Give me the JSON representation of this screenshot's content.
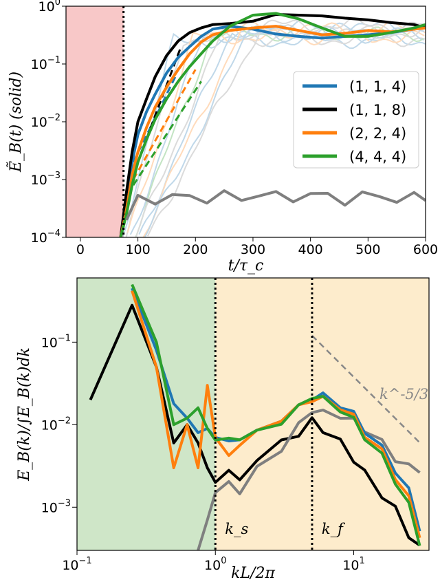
{
  "chart_data": [
    {
      "type": "line",
      "ylabel": "Ẽ_B(t) (solid)",
      "xlabel": "t/τ_c",
      "xlim": [
        -25,
        600
      ],
      "ylim": [
        0.0001,
        1
      ],
      "yscale": "log",
      "xticks": [
        "0",
        "100",
        "200",
        "300",
        "400",
        "500",
        "600"
      ],
      "xtick_values": [
        0,
        100,
        200,
        300,
        400,
        500,
        600
      ],
      "yticks": [
        "10^-4",
        "10^-3",
        "10^-2",
        "10^-1",
        "10^0"
      ],
      "ytick_values": [
        0.0001,
        0.001,
        0.01,
        0.1,
        1
      ],
      "shaded_region": {
        "x": [
          -25,
          75
        ],
        "color": "#f8c8c8"
      },
      "vline_x": 75,
      "legend_placement": "right",
      "legend": [
        {
          "label": "(1, 1, 4)",
          "color": "#1f77b4"
        },
        {
          "label": "(1, 1, 8)",
          "color": "#000000"
        },
        {
          "label": "(2, 2, 4)",
          "color": "#ff7f0e"
        },
        {
          "label": "(4, 4, 4)",
          "color": "#2ca02c"
        }
      ],
      "series": [
        {
          "color": "#1f77b4",
          "x": [
            70,
            80,
            90,
            100,
            115,
            130,
            150,
            170,
            190,
            210,
            230,
            260,
            300,
            340,
            380,
            420,
            460,
            500,
            540,
            580,
            600
          ],
          "y": [
            0.0001,
            0.0004,
            0.002,
            0.006,
            0.015,
            0.03,
            0.07,
            0.13,
            0.2,
            0.3,
            0.4,
            0.45,
            0.4,
            0.33,
            0.3,
            0.28,
            0.3,
            0.32,
            0.35,
            0.4,
            0.45
          ]
        },
        {
          "color": "#000000",
          "x": [
            70,
            80,
            90,
            100,
            115,
            130,
            150,
            170,
            190,
            210,
            230,
            260,
            300,
            340,
            380,
            420,
            460,
            500,
            540,
            580,
            600
          ],
          "y": [
            0.0001,
            0.0006,
            0.003,
            0.01,
            0.025,
            0.06,
            0.14,
            0.25,
            0.35,
            0.42,
            0.48,
            0.5,
            0.55,
            0.72,
            0.7,
            0.68,
            0.62,
            0.58,
            0.52,
            0.48,
            0.42
          ]
        },
        {
          "color": "#ff7f0e",
          "x": [
            70,
            80,
            90,
            100,
            115,
            130,
            150,
            170,
            190,
            210,
            230,
            260,
            300,
            340,
            380,
            420,
            460,
            500,
            540,
            580,
            600
          ],
          "y": [
            0.0001,
            0.0003,
            0.0012,
            0.003,
            0.008,
            0.018,
            0.04,
            0.08,
            0.15,
            0.24,
            0.32,
            0.38,
            0.42,
            0.45,
            0.38,
            0.32,
            0.34,
            0.38,
            0.36,
            0.4,
            0.42
          ]
        },
        {
          "color": "#2ca02c",
          "x": [
            70,
            80,
            90,
            100,
            115,
            130,
            150,
            170,
            190,
            210,
            230,
            260,
            300,
            340,
            380,
            420,
            460,
            500,
            540,
            580,
            600
          ],
          "y": [
            0.0001,
            0.00025,
            0.0008,
            0.002,
            0.005,
            0.011,
            0.025,
            0.05,
            0.09,
            0.15,
            0.25,
            0.45,
            0.7,
            0.75,
            0.6,
            0.42,
            0.3,
            0.3,
            0.35,
            0.42,
            0.48
          ]
        },
        {
          "color": "#7f7f7f",
          "x": [
            80,
            100,
            130,
            160,
            190,
            220,
            250,
            280,
            310,
            340,
            370,
            400,
            430,
            460,
            490,
            520,
            550,
            580,
            600
          ],
          "y": [
            0.0002,
            0.00045,
            0.0005,
            0.00048,
            0.0005,
            0.0005,
            0.00052,
            0.00048,
            0.00058,
            0.0005,
            0.00052,
            0.00055,
            0.0005,
            0.00048,
            0.00052,
            0.0005,
            0.0005,
            0.00048,
            0.0005
          ]
        }
      ]
    },
    {
      "type": "line",
      "ylabel": "E_B(k)/∫E_B(k)dk",
      "xlabel": "kL/2π",
      "xscale": "log",
      "yscale": "log",
      "xlim": [
        0.1,
        35
      ],
      "ylim": [
        0.0003,
        0.6
      ],
      "xticks": [
        "10^-1",
        "10^0",
        "10^1"
      ],
      "xtick_values": [
        0.1,
        1,
        10
      ],
      "yticks": [
        "10^-3",
        "10^-2",
        "10^-1"
      ],
      "ytick_values": [
        0.001,
        0.01,
        0.1
      ],
      "regions": [
        {
          "x": [
            0.1,
            1
          ],
          "color": "#cfe6c8"
        },
        {
          "x": [
            1,
            35
          ],
          "color": "#fdeccc"
        }
      ],
      "annotations": [
        {
          "label": "k_s",
          "x": 1
        },
        {
          "label": "k_f",
          "x": 5
        }
      ],
      "reference_line": {
        "label": "k^-5/3",
        "x": [
          5,
          30
        ],
        "y0": 0.12,
        "exponent": -1.6667,
        "color": "#888888"
      },
      "series": [
        {
          "color": "#000000",
          "x": [
            0.125,
            0.25,
            0.375,
            0.5,
            0.625,
            0.75,
            0.875,
            1.0,
            1.25,
            1.5,
            2,
            3,
            4,
            5,
            6,
            8,
            10,
            12,
            16,
            20,
            25,
            30
          ],
          "y": [
            0.02,
            0.28,
            0.05,
            0.006,
            0.01,
            0.006,
            0.003,
            0.002,
            0.003,
            0.002,
            0.004,
            0.006,
            0.008,
            0.011,
            0.009,
            0.006,
            0.004,
            0.0025,
            0.0015,
            0.0009,
            0.0005,
            0.0003
          ]
        },
        {
          "color": "#7f7f7f",
          "x": [
            0.75,
            0.875,
            1.0,
            1.25,
            1.5,
            2,
            3,
            4,
            5,
            6,
            8,
            10,
            12,
            16,
            20,
            25,
            30
          ],
          "y": [
            0.0003,
            0.0007,
            0.0015,
            0.002,
            0.0015,
            0.003,
            0.005,
            0.01,
            0.015,
            0.014,
            0.013,
            0.011,
            0.009,
            0.006,
            0.004,
            0.003,
            0.003
          ]
        },
        {
          "color": "#1f77b4",
          "x": [
            0.25,
            0.375,
            0.5,
            0.625,
            0.75,
            0.875,
            1.0,
            1.25,
            1.5,
            2,
            3,
            4,
            5,
            6,
            8,
            10,
            12,
            16,
            20,
            25,
            30
          ],
          "y": [
            0.45,
            0.08,
            0.018,
            0.012,
            0.008,
            0.009,
            0.007,
            0.006,
            0.007,
            0.008,
            0.012,
            0.016,
            0.022,
            0.022,
            0.018,
            0.013,
            0.009,
            0.005,
            0.003,
            0.0015,
            0.0006
          ]
        },
        {
          "color": "#ff7f0e",
          "x": [
            0.25,
            0.375,
            0.5,
            0.625,
            0.75,
            0.875,
            1.0,
            1.25,
            1.5,
            2,
            3,
            4,
            5,
            6,
            8,
            10,
            12,
            16,
            20,
            25,
            30
          ],
          "y": [
            0.42,
            0.05,
            0.003,
            0.01,
            0.003,
            0.03,
            0.007,
            0.004,
            0.006,
            0.008,
            0.012,
            0.016,
            0.021,
            0.02,
            0.017,
            0.012,
            0.008,
            0.0045,
            0.0025,
            0.0012,
            0.0005
          ]
        },
        {
          "color": "#2ca02c",
          "x": [
            0.25,
            0.375,
            0.5,
            0.625,
            0.75,
            0.875,
            1.0,
            1.25,
            1.5,
            2,
            3,
            4,
            5,
            6,
            8,
            10,
            12,
            16,
            20,
            25,
            30
          ],
          "y": [
            0.5,
            0.1,
            0.01,
            0.012,
            0.016,
            0.009,
            0.0065,
            0.0065,
            0.007,
            0.008,
            0.011,
            0.016,
            0.023,
            0.02,
            0.016,
            0.011,
            0.0075,
            0.004,
            0.0022,
            0.001,
            0.0004
          ]
        }
      ]
    }
  ]
}
